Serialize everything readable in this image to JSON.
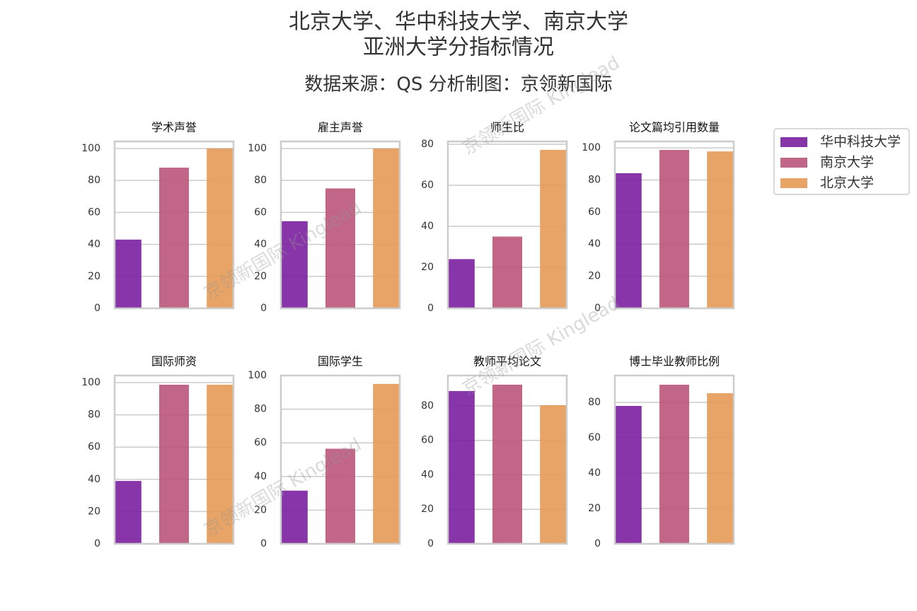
{
  "title": "北京大学、华中科技大学、南京大学\n亚洲大学分指标情况",
  "subtitle": "数据来源：QS  分析制图：京领新国际",
  "watermark": "京领新国际 Kinglead",
  "legend": {
    "names": [
      "华中科技大学",
      "南京大学",
      "北京大学"
    ],
    "colors": [
      "#7b1fa0",
      "#bb557a",
      "#e69a55"
    ]
  },
  "chart_data": [
    {
      "type": "bar",
      "title": "学术声誉",
      "values": [
        43,
        88,
        100
      ],
      "ylim": [
        0,
        104.4
      ],
      "yticks": [
        0,
        20,
        40,
        60,
        80,
        100
      ],
      "grid": true
    },
    {
      "type": "bar",
      "title": "雇主声誉",
      "values": [
        54.5,
        75,
        100
      ],
      "ylim": [
        0,
        104.4
      ],
      "yticks": [
        0,
        20,
        40,
        60,
        80,
        100
      ],
      "grid": true
    },
    {
      "type": "bar",
      "title": "师生比",
      "values": [
        24,
        35,
        77.3
      ],
      "ylim": [
        0,
        81.4
      ],
      "yticks": [
        0,
        20,
        40,
        60,
        80
      ],
      "grid": true
    },
    {
      "type": "bar",
      "title": "论文篇均引用数量",
      "values": [
        84.2,
        98.7,
        97.8
      ],
      "ylim": [
        0,
        104
      ],
      "yticks": [
        0,
        20,
        40,
        60,
        80,
        100
      ],
      "grid": true
    },
    {
      "type": "bar",
      "title": "国际师资",
      "values": [
        39,
        98.7,
        98.7
      ],
      "ylim": [
        0,
        104.4
      ],
      "yticks": [
        0,
        20,
        40,
        60,
        80,
        100
      ],
      "grid": true
    },
    {
      "type": "bar",
      "title": "国际学生",
      "values": [
        31.6,
        56.5,
        95
      ],
      "ylim": [
        0,
        100
      ],
      "yticks": [
        0,
        20,
        40,
        60,
        80,
        100
      ],
      "grid": true
    },
    {
      "type": "bar",
      "title": "教师平均论文",
      "values": [
        88.6,
        92.3,
        80.4
      ],
      "ylim": [
        0,
        97.6
      ],
      "yticks": [
        0,
        20,
        40,
        60,
        80
      ],
      "grid": true
    },
    {
      "type": "bar",
      "title": "博士毕业教师比例",
      "values": [
        78,
        90,
        85.2
      ],
      "ylim": [
        0,
        95.2
      ],
      "yticks": [
        0,
        20,
        40,
        60,
        80
      ],
      "grid": true
    }
  ]
}
